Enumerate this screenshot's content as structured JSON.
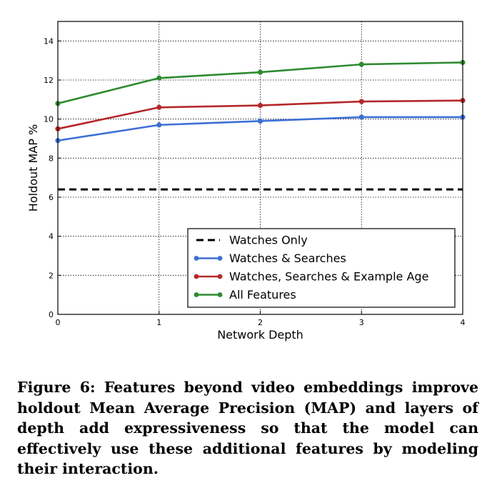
{
  "chart_data": {
    "type": "line",
    "xlabel": "Network Depth",
    "ylabel": "Holdout MAP %",
    "xlim": [
      0,
      4
    ],
    "ylim": [
      0,
      15
    ],
    "xticks": [
      "0",
      "1",
      "2",
      "3",
      "4"
    ],
    "yticks": [
      "0",
      "2",
      "4",
      "6",
      "8",
      "10",
      "12",
      "14"
    ],
    "grid": true,
    "legend_position": "lower-right",
    "x": [
      0,
      1,
      2,
      3,
      4
    ],
    "series": [
      {
        "name": "Watches Only",
        "values": [
          6.4,
          6.4,
          6.4,
          6.4,
          6.4
        ],
        "color": "#000000",
        "style": "dashed"
      },
      {
        "name": "Watches & Searches",
        "values": [
          8.9,
          9.7,
          9.9,
          10.1,
          10.1
        ],
        "color": "#3d6fd6",
        "style": "solid"
      },
      {
        "name": "Watches, Searches & Example Age",
        "values": [
          9.5,
          10.6,
          10.7,
          10.9,
          10.95
        ],
        "color": "#b5282b",
        "style": "solid"
      },
      {
        "name": "All Features",
        "values": [
          10.8,
          12.1,
          12.4,
          12.8,
          12.9
        ],
        "color": "#2e8b30",
        "style": "solid"
      }
    ]
  },
  "caption": "Figure 6: Features beyond video embeddings improve holdout Mean Average Precision (MAP) and layers of depth add expressiveness so that the model can effectively use these additional features by modeling their interaction."
}
